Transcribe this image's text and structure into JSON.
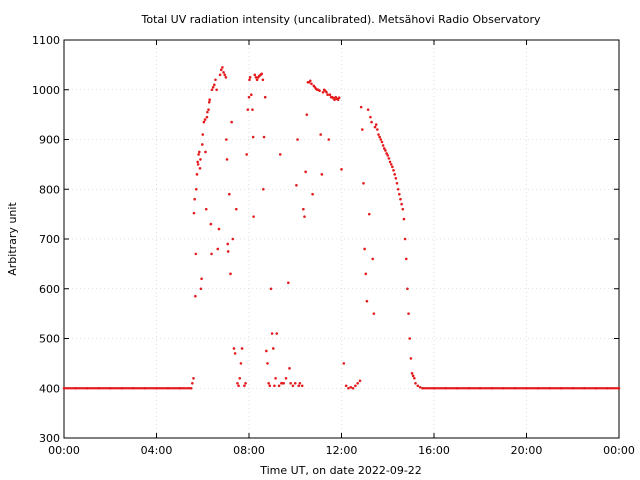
{
  "chart_data": {
    "type": "scatter",
    "title": "Total UV radiation intensity (uncalibrated). Metsähovi Radio Observatory",
    "xlabel": "Time UT, on date 2022-09-22",
    "ylabel": "Arbitrary unit",
    "xlim": [
      0,
      24
    ],
    "ylim": [
      300,
      1100
    ],
    "xticks": [
      0,
      4,
      8,
      12,
      16,
      20,
      24
    ],
    "xtick_labels": [
      "00:00",
      "04:00",
      "08:00",
      "12:00",
      "16:00",
      "20:00",
      "00:00"
    ],
    "yticks": [
      300,
      400,
      500,
      600,
      700,
      800,
      900,
      1000,
      1100
    ],
    "ytick_labels": [
      "300",
      "400",
      "500",
      "600",
      "700",
      "800",
      "900",
      "1000",
      "1100"
    ],
    "grid": true,
    "legend": "none",
    "colors": {
      "points": "#e41a1c",
      "grid": "#c8c8c8",
      "axis": "#000000"
    },
    "series": [
      {
        "points": [
          [
            0.0,
            400
          ],
          [
            0.5,
            400
          ],
          [
            1.0,
            400
          ],
          [
            1.5,
            400
          ],
          [
            2.0,
            400
          ],
          [
            2.5,
            400
          ],
          [
            3.0,
            400
          ],
          [
            3.5,
            400
          ],
          [
            4.0,
            400
          ],
          [
            4.5,
            400
          ],
          [
            5.0,
            400
          ],
          [
            5.5,
            400
          ],
          [
            5.55,
            410
          ],
          [
            5.6,
            420
          ],
          [
            5.62,
            752
          ],
          [
            5.65,
            780
          ],
          [
            5.68,
            585
          ],
          [
            5.7,
            670
          ],
          [
            5.72,
            800
          ],
          [
            5.75,
            830
          ],
          [
            5.78,
            855
          ],
          [
            5.8,
            850
          ],
          [
            5.82,
            870
          ],
          [
            5.85,
            875
          ],
          [
            5.88,
            842
          ],
          [
            5.9,
            860
          ],
          [
            5.92,
            600
          ],
          [
            5.95,
            620
          ],
          [
            5.98,
            890
          ],
          [
            6.0,
            910
          ],
          [
            6.05,
            935
          ],
          [
            6.1,
            940
          ],
          [
            6.12,
            875
          ],
          [
            6.15,
            760
          ],
          [
            6.18,
            945
          ],
          [
            6.2,
            955
          ],
          [
            6.25,
            960
          ],
          [
            6.28,
            975
          ],
          [
            6.3,
            980
          ],
          [
            6.35,
            730
          ],
          [
            6.38,
            670
          ],
          [
            6.4,
            1000
          ],
          [
            6.45,
            1005
          ],
          [
            6.5,
            1010
          ],
          [
            6.55,
            1020
          ],
          [
            6.6,
            1000
          ],
          [
            6.65,
            680
          ],
          [
            6.7,
            720
          ],
          [
            6.75,
            1030
          ],
          [
            6.8,
            1040
          ],
          [
            6.85,
            1045
          ],
          [
            6.9,
            1035
          ],
          [
            6.95,
            1030
          ],
          [
            7.0,
            1025
          ],
          [
            7.02,
            900
          ],
          [
            7.05,
            860
          ],
          [
            7.08,
            690
          ],
          [
            7.1,
            675
          ],
          [
            7.15,
            790
          ],
          [
            7.2,
            630
          ],
          [
            7.25,
            935
          ],
          [
            7.3,
            700
          ],
          [
            7.35,
            480
          ],
          [
            7.4,
            470
          ],
          [
            7.45,
            760
          ],
          [
            7.5,
            410
          ],
          [
            7.55,
            405
          ],
          [
            7.6,
            420
          ],
          [
            7.65,
            450
          ],
          [
            7.7,
            480
          ],
          [
            7.8,
            405
          ],
          [
            7.85,
            410
          ],
          [
            7.9,
            870
          ],
          [
            7.95,
            960
          ],
          [
            8.0,
            985
          ],
          [
            8.02,
            1020
          ],
          [
            8.05,
            1025
          ],
          [
            8.1,
            990
          ],
          [
            8.15,
            960
          ],
          [
            8.18,
            905
          ],
          [
            8.2,
            745
          ],
          [
            8.25,
            1030
          ],
          [
            8.3,
            1025
          ],
          [
            8.35,
            1020
          ],
          [
            8.4,
            1025
          ],
          [
            8.45,
            1028
          ],
          [
            8.5,
            1030
          ],
          [
            8.55,
            1032
          ],
          [
            8.6,
            1020
          ],
          [
            8.62,
            800
          ],
          [
            8.65,
            905
          ],
          [
            8.7,
            985
          ],
          [
            8.75,
            475
          ],
          [
            8.8,
            450
          ],
          [
            8.85,
            410
          ],
          [
            8.9,
            405
          ],
          [
            8.95,
            600
          ],
          [
            9.0,
            510
          ],
          [
            9.05,
            480
          ],
          [
            9.1,
            405
          ],
          [
            9.15,
            420
          ],
          [
            9.2,
            510
          ],
          [
            9.3,
            405
          ],
          [
            9.35,
            870
          ],
          [
            9.4,
            410
          ],
          [
            9.5,
            410
          ],
          [
            9.6,
            420
          ],
          [
            9.7,
            612
          ],
          [
            9.75,
            440
          ],
          [
            9.8,
            410
          ],
          [
            9.9,
            405
          ],
          [
            10.0,
            410
          ],
          [
            10.05,
            808
          ],
          [
            10.1,
            900
          ],
          [
            10.15,
            405
          ],
          [
            10.2,
            410
          ],
          [
            10.3,
            405
          ],
          [
            10.35,
            760
          ],
          [
            10.4,
            745
          ],
          [
            10.45,
            835
          ],
          [
            10.5,
            950
          ],
          [
            10.55,
            1015
          ],
          [
            10.6,
            1015
          ],
          [
            10.65,
            1018
          ],
          [
            10.7,
            1012
          ],
          [
            10.75,
            790
          ],
          [
            10.8,
            1008
          ],
          [
            10.85,
            1005
          ],
          [
            10.9,
            1002
          ],
          [
            10.95,
            1000
          ],
          [
            11.0,
            1000
          ],
          [
            11.05,
            998
          ],
          [
            11.1,
            910
          ],
          [
            11.15,
            830
          ],
          [
            11.2,
            995
          ],
          [
            11.25,
            1000
          ],
          [
            11.3,
            998
          ],
          [
            11.35,
            995
          ],
          [
            11.4,
            990
          ],
          [
            11.45,
            900
          ],
          [
            11.5,
            990
          ],
          [
            11.55,
            985
          ],
          [
            11.6,
            985
          ],
          [
            11.65,
            983
          ],
          [
            11.7,
            980
          ],
          [
            11.75,
            985
          ],
          [
            11.8,
            982
          ],
          [
            11.85,
            980
          ],
          [
            11.9,
            984
          ],
          [
            12.0,
            840
          ],
          [
            12.1,
            450
          ],
          [
            12.2,
            405
          ],
          [
            12.3,
            400
          ],
          [
            12.4,
            402
          ],
          [
            12.5,
            400
          ],
          [
            12.6,
            405
          ],
          [
            12.7,
            410
          ],
          [
            12.8,
            415
          ],
          [
            12.85,
            965
          ],
          [
            12.9,
            920
          ],
          [
            12.95,
            812
          ],
          [
            13.0,
            680
          ],
          [
            13.05,
            630
          ],
          [
            13.1,
            575
          ],
          [
            13.15,
            960
          ],
          [
            13.2,
            750
          ],
          [
            13.25,
            945
          ],
          [
            13.3,
            935
          ],
          [
            13.35,
            660
          ],
          [
            13.4,
            550
          ],
          [
            13.45,
            925
          ],
          [
            13.5,
            930
          ],
          [
            13.55,
            920
          ],
          [
            13.6,
            910
          ],
          [
            13.65,
            905
          ],
          [
            13.7,
            900
          ],
          [
            13.75,
            895
          ],
          [
            13.8,
            888
          ],
          [
            13.85,
            882
          ],
          [
            13.9,
            878
          ],
          [
            13.95,
            872
          ],
          [
            14.0,
            868
          ],
          [
            14.05,
            862
          ],
          [
            14.1,
            855
          ],
          [
            14.15,
            850
          ],
          [
            14.2,
            845
          ],
          [
            14.25,
            838
          ],
          [
            14.3,
            830
          ],
          [
            14.35,
            822
          ],
          [
            14.4,
            812
          ],
          [
            14.45,
            800
          ],
          [
            14.5,
            790
          ],
          [
            14.55,
            780
          ],
          [
            14.6,
            770
          ],
          [
            14.65,
            760
          ],
          [
            14.7,
            740
          ],
          [
            14.75,
            700
          ],
          [
            14.8,
            660
          ],
          [
            14.85,
            600
          ],
          [
            14.9,
            550
          ],
          [
            14.95,
            500
          ],
          [
            15.0,
            460
          ],
          [
            15.05,
            430
          ],
          [
            15.1,
            425
          ],
          [
            15.15,
            420
          ],
          [
            15.2,
            410
          ],
          [
            15.3,
            405
          ],
          [
            15.4,
            402
          ],
          [
            15.5,
            400
          ],
          [
            16.0,
            400
          ],
          [
            16.5,
            400
          ],
          [
            17.0,
            400
          ],
          [
            17.5,
            400
          ],
          [
            18.0,
            400
          ],
          [
            18.5,
            400
          ],
          [
            19.0,
            400
          ],
          [
            19.5,
            400
          ],
          [
            20.0,
            400
          ],
          [
            20.5,
            400
          ],
          [
            21.0,
            400
          ],
          [
            21.5,
            400
          ],
          [
            22.0,
            400
          ],
          [
            22.5,
            400
          ],
          [
            23.0,
            400
          ],
          [
            23.5,
            400
          ],
          [
            24.0,
            400
          ]
        ]
      }
    ]
  }
}
